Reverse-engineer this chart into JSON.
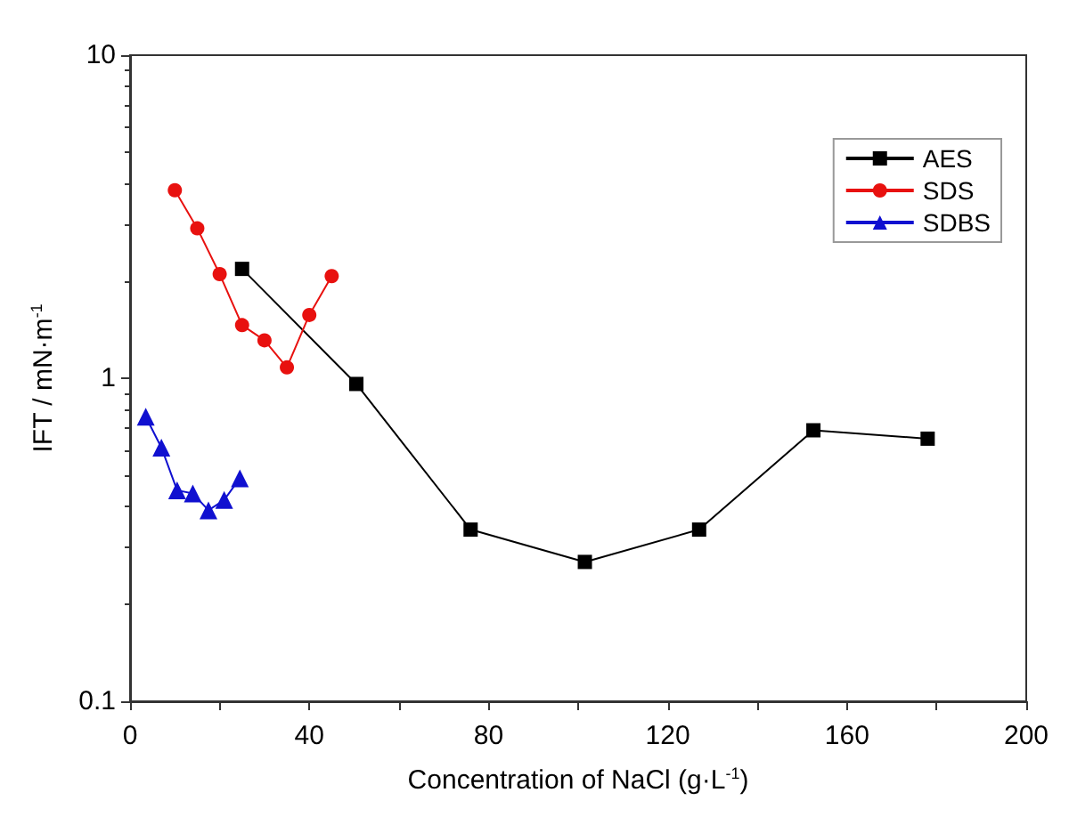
{
  "chart_data": {
    "type": "line",
    "xlabel": "Concentration of NaCl (g·L$^{-1}$)",
    "ylabel": "IFT / mN·m$^{-1}$",
    "xlim": [
      0,
      200
    ],
    "xticks": [
      0,
      {
        "value": 20,
        "label": null
      },
      40,
      {
        "value": 60,
        "label": null
      },
      80,
      {
        "value": 100,
        "label": null
      },
      120,
      {
        "value": 140,
        "label": null
      },
      160,
      {
        "value": 180,
        "label": null
      },
      200
    ],
    "ylim": [
      0.1,
      10
    ],
    "yticks": [
      0.1,
      1,
      10
    ],
    "log": "y",
    "grid": false,
    "legend": "top right",
    "series": [
      {
        "name": "AES",
        "color": "#000000",
        "marker": "square",
        "x": [
          25,
          50.5,
          76,
          101.5,
          127,
          152.5,
          178
        ],
        "values": [
          2.18,
          0.96,
          0.34,
          0.27,
          0.34,
          0.69,
          0.65
        ]
      },
      {
        "name": "SDS",
        "color": "#e8110f",
        "marker": "circle",
        "x": [
          10,
          15,
          20,
          25,
          30,
          35,
          40,
          45
        ],
        "values": [
          3.82,
          2.91,
          2.1,
          1.46,
          1.31,
          1.08,
          1.57,
          2.07
        ]
      },
      {
        "name": "SDBS",
        "color": "#1010d0",
        "marker": "triangle",
        "x": [
          3.5,
          7,
          10.5,
          14,
          17.5,
          21,
          24.5
        ],
        "values": [
          0.76,
          0.61,
          0.45,
          0.44,
          0.39,
          0.42,
          0.49
        ]
      }
    ]
  }
}
